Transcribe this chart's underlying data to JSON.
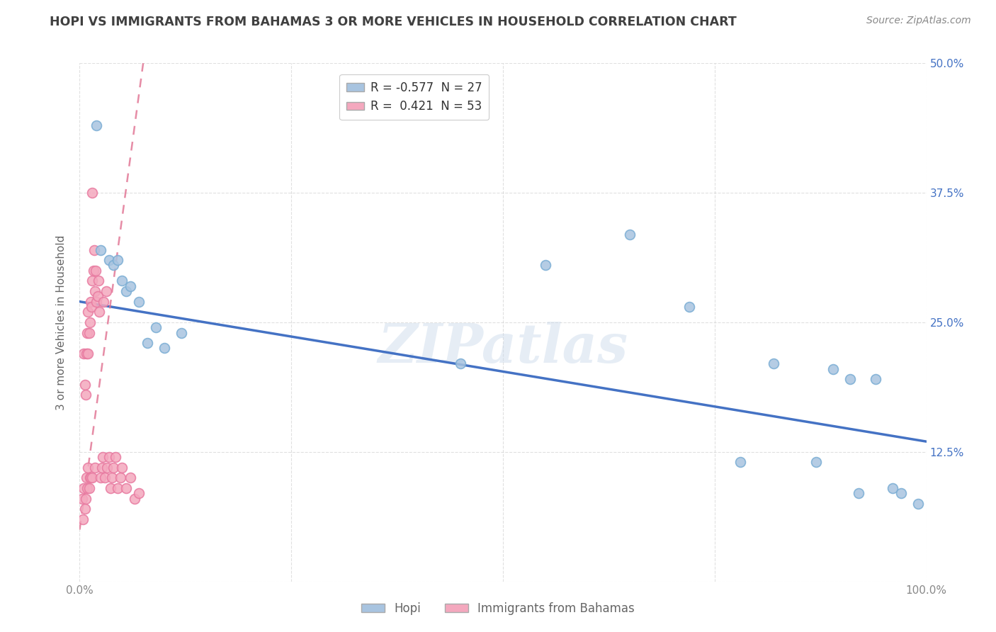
{
  "title": "HOPI VS IMMIGRANTS FROM BAHAMAS 3 OR MORE VEHICLES IN HOUSEHOLD CORRELATION CHART",
  "source": "Source: ZipAtlas.com",
  "ylabel": "3 or more Vehicles in Household",
  "xlim": [
    0,
    100
  ],
  "ylim": [
    0,
    50
  ],
  "yticks": [
    0,
    12.5,
    25.0,
    37.5,
    50.0
  ],
  "xticks": [
    0,
    25,
    50,
    75,
    100
  ],
  "xtick_labels": [
    "0.0%",
    "",
    "",
    "",
    "100.0%"
  ],
  "ytick_labels": [
    "",
    "12.5%",
    "25.0%",
    "37.5%",
    "50.0%"
  ],
  "hopi_color": "#a8c4e0",
  "hopi_edge_color": "#7aadd4",
  "bahamas_color": "#f4a8be",
  "bahamas_edge_color": "#e87aa0",
  "hopi_line_color": "#4472c4",
  "bahamas_line_color": "#e07090",
  "R_hopi": -0.577,
  "N_hopi": 27,
  "R_bahamas": 0.421,
  "N_bahamas": 53,
  "legend_labels": [
    "Hopi",
    "Immigrants from Bahamas"
  ],
  "watermark": "ZIPatlas",
  "hopi_x": [
    2.0,
    2.5,
    3.5,
    4.0,
    4.5,
    5.0,
    5.5,
    6.0,
    7.0,
    8.0,
    9.0,
    10.0,
    12.0,
    55.0,
    65.0,
    72.0,
    78.0,
    82.0,
    87.0,
    89.0,
    91.0,
    92.0,
    94.0,
    96.0,
    97.0,
    99.0,
    45.0
  ],
  "hopi_y": [
    44.0,
    32.0,
    31.0,
    30.5,
    31.0,
    29.0,
    28.0,
    28.5,
    27.0,
    23.0,
    24.5,
    22.5,
    24.0,
    30.5,
    33.5,
    26.5,
    11.5,
    21.0,
    11.5,
    20.5,
    19.5,
    8.5,
    19.5,
    9.0,
    8.5,
    7.5,
    21.0
  ],
  "bahamas_x": [
    0.3,
    0.4,
    0.5,
    0.5,
    0.6,
    0.6,
    0.7,
    0.7,
    0.8,
    0.8,
    0.9,
    0.9,
    1.0,
    1.0,
    1.0,
    1.1,
    1.1,
    1.2,
    1.2,
    1.3,
    1.3,
    1.4,
    1.5,
    1.5,
    1.6,
    1.7,
    1.8,
    1.8,
    1.9,
    2.0,
    2.1,
    2.2,
    2.3,
    2.5,
    2.6,
    2.7,
    2.8,
    3.0,
    3.1,
    3.2,
    3.5,
    3.6,
    3.8,
    4.0,
    4.2,
    4.5,
    4.8,
    5.0,
    5.5,
    6.0,
    6.5,
    7.0,
    1.5
  ],
  "bahamas_y": [
    8.0,
    6.0,
    9.0,
    22.0,
    7.0,
    19.0,
    8.0,
    18.0,
    10.0,
    22.0,
    9.0,
    24.0,
    11.0,
    22.0,
    26.0,
    24.0,
    9.0,
    25.0,
    10.0,
    27.0,
    10.0,
    26.5,
    29.0,
    10.0,
    30.0,
    32.0,
    28.0,
    11.0,
    30.0,
    27.0,
    27.5,
    29.0,
    26.0,
    10.0,
    11.0,
    12.0,
    27.0,
    10.0,
    28.0,
    11.0,
    12.0,
    9.0,
    10.0,
    11.0,
    12.0,
    9.0,
    10.0,
    11.0,
    9.0,
    10.0,
    8.0,
    8.5,
    37.5
  ],
  "blue_line_x": [
    0,
    100
  ],
  "blue_line_y": [
    27.0,
    13.5
  ],
  "pink_line_x": [
    0,
    7.5
  ],
  "pink_line_y": [
    5.0,
    50.0
  ],
  "background_color": "#ffffff",
  "grid_color": "#cccccc",
  "title_color": "#404040",
  "source_color": "#888888",
  "right_ytick_color": "#4472c4",
  "marker_size": 100
}
